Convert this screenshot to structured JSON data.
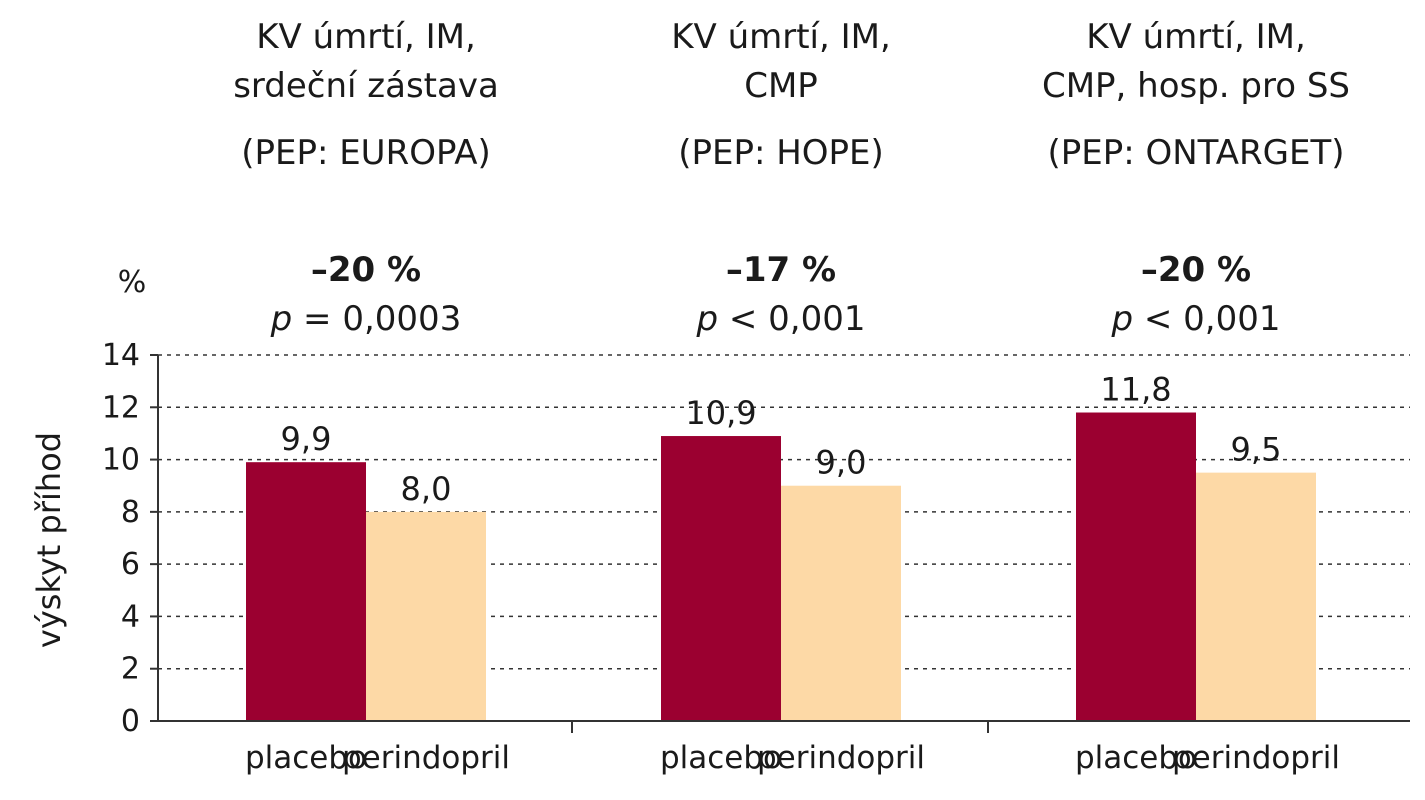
{
  "chart_data": {
    "type": "bar",
    "ylabel": "výskyt příhod",
    "yunit": "%",
    "ylim": [
      0,
      14
    ],
    "yticks": [
      0,
      2,
      4,
      6,
      8,
      10,
      12,
      14
    ],
    "grid": true,
    "colors": {
      "placebo": "#9b0030",
      "perindopril": "#fdd9a6"
    },
    "groups": [
      {
        "title_lines": [
          "KV úmrtí, IM,",
          "srdeční zástava",
          "(PEP: EUROPA)"
        ],
        "reduction": "–20 %",
        "p_symbol": "p",
        "p_text": " = 0,0003",
        "bars": [
          {
            "category": "placebo",
            "value": 9.9,
            "label": "9,9"
          },
          {
            "category": "perindopril",
            "value": 8.0,
            "label": "8,0"
          }
        ]
      },
      {
        "title_lines": [
          "KV úmrtí, IM,",
          "CMP",
          "(PEP: HOPE)"
        ],
        "reduction": "–17 %",
        "p_symbol": "p",
        "p_text": " < 0,001",
        "bars": [
          {
            "category": "placebo",
            "value": 10.9,
            "label": "10,9"
          },
          {
            "category": "perindopril",
            "value": 9.0,
            "label": "9,0"
          }
        ]
      },
      {
        "title_lines": [
          "KV úmrtí, IM,",
          "CMP, hosp. pro SS",
          "(PEP: ONTARGET)"
        ],
        "reduction": "–20 %",
        "p_symbol": "p",
        "p_text": " < 0,001",
        "bars": [
          {
            "category": "placebo",
            "value": 11.8,
            "label": "11,8"
          },
          {
            "category": "perindopril",
            "value": 9.5,
            "label": "9,5"
          }
        ]
      }
    ]
  }
}
